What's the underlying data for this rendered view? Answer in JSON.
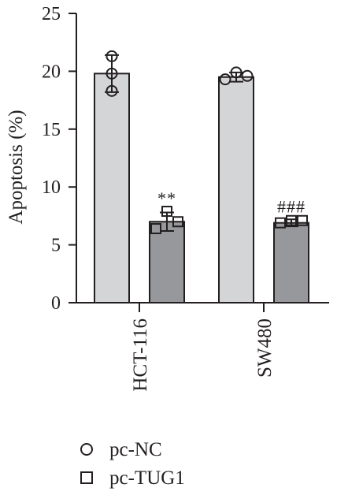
{
  "chart_data": {
    "type": "bar",
    "title": "",
    "xlabel": "",
    "ylabel": "Apoptosis (%)",
    "ylim": [
      0,
      25
    ],
    "yticks": [
      "0",
      "5",
      "10",
      "15",
      "20",
      "25"
    ],
    "categories": [
      "HCT-116",
      "SW480"
    ],
    "series": [
      {
        "name": "pc-NC",
        "marker": "circle",
        "color": "#d4d5d7",
        "values": [
          19.8,
          19.5
        ],
        "errors": [
          1.6,
          0.4
        ],
        "points": [
          [
            21.3,
            19.8,
            18.3
          ],
          [
            19.3,
            19.9,
            19.6
          ]
        ]
      },
      {
        "name": "pc-TUG1",
        "marker": "square",
        "color": "#96989c",
        "values": [
          7.0,
          6.9
        ],
        "errors": [
          0.8,
          0.3
        ],
        "points": [
          [
            6.4,
            7.9,
            7.0
          ],
          [
            6.9,
            7.1,
            7.1
          ]
        ]
      }
    ],
    "annotations": [
      {
        "category": "HCT-116",
        "series": "pc-TUG1",
        "text": "**"
      },
      {
        "category": "SW480",
        "series": "pc-TUG1",
        "text": "###"
      }
    ],
    "grid": false,
    "legend": "bottom-left"
  }
}
